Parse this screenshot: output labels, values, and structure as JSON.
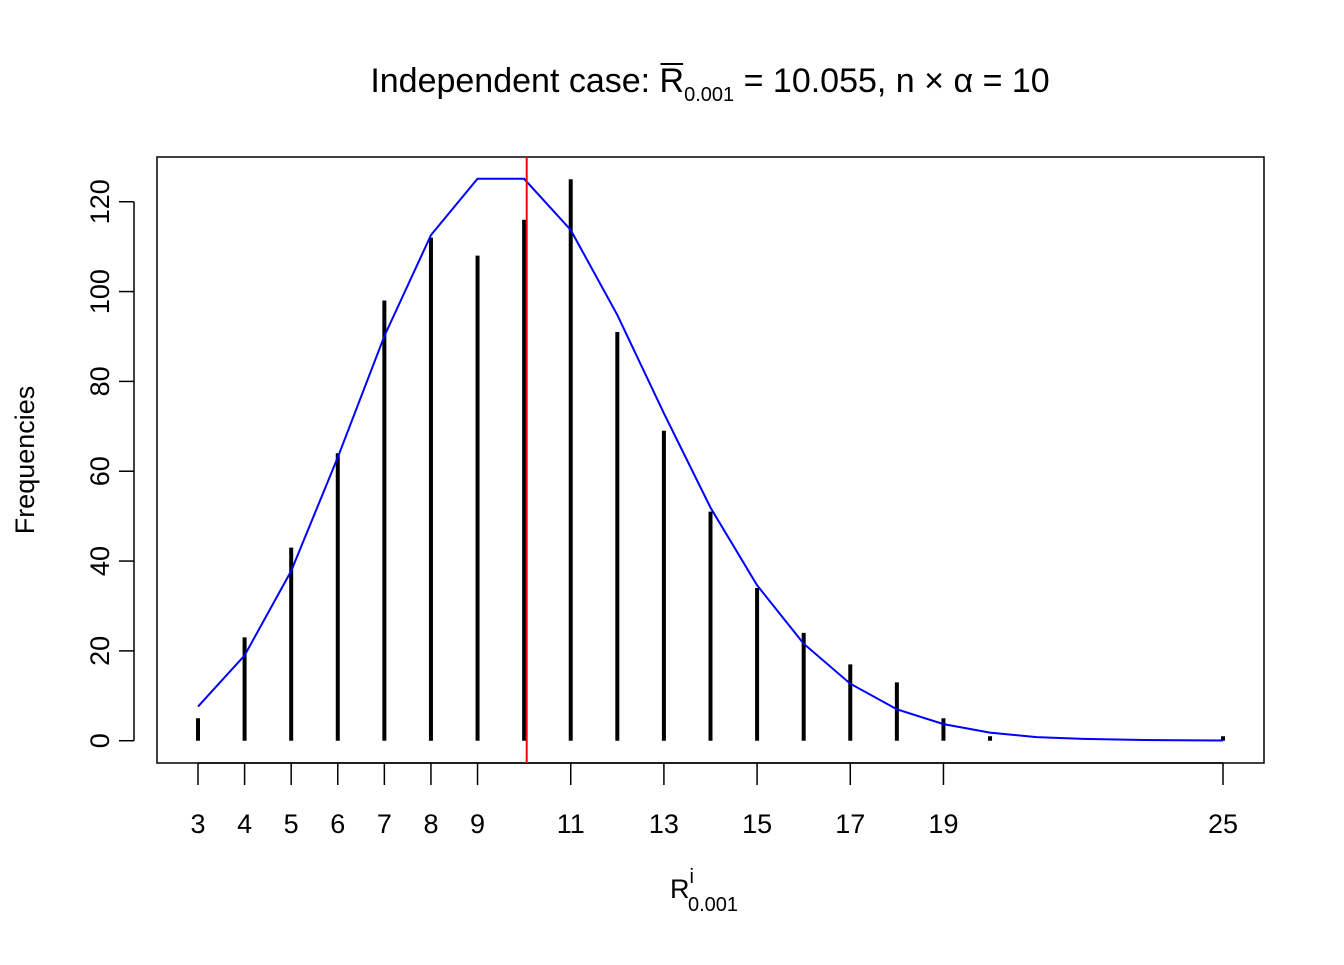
{
  "chart_data": {
    "type": "bar",
    "title": {
      "prefix": "Independent case: ",
      "symbol": "R",
      "subscript": "0.001",
      "suffix": " = 10.055, n × α = 10"
    },
    "xlabel": {
      "base": "R",
      "superscript": "i",
      "subscript": "0.001"
    },
    "ylabel": "Frequencies",
    "xlim": [
      2.12,
      25.88
    ],
    "ylim": [
      -4.96,
      129.96
    ],
    "x_ticks": [
      3,
      4,
      5,
      6,
      7,
      8,
      9,
      11,
      13,
      15,
      17,
      19,
      25
    ],
    "y_ticks": [
      0,
      20,
      40,
      60,
      80,
      100,
      120
    ],
    "series": [
      {
        "kind": "bars",
        "color": "#000000",
        "x": [
          3,
          4,
          5,
          6,
          7,
          8,
          9,
          10,
          11,
          12,
          13,
          14,
          15,
          16,
          17,
          18,
          19,
          20,
          25
        ],
        "values": [
          5,
          23,
          43,
          64,
          98,
          112,
          108,
          116,
          125,
          91,
          69,
          51,
          34,
          24,
          17,
          13,
          5,
          1,
          1
        ]
      },
      {
        "kind": "line",
        "color": "#0000ff",
        "x": [
          3,
          4,
          5,
          6,
          7,
          8,
          9,
          10,
          11,
          12,
          13,
          14,
          15,
          16,
          17,
          18,
          19,
          20,
          21,
          22,
          23,
          24,
          25
        ],
        "values": [
          7.6,
          19,
          37.8,
          63.1,
          90.1,
          112.6,
          125.1,
          125.1,
          113.7,
          94.8,
          72.9,
          51.9,
          34.6,
          21.6,
          12.7,
          7.0,
          3.7,
          1.8,
          0.8,
          0.4,
          0.2,
          0.1,
          0.04
        ]
      }
    ],
    "vline": {
      "x": 10.055,
      "color": "#ff0000"
    },
    "grid": false,
    "legend": "none"
  }
}
